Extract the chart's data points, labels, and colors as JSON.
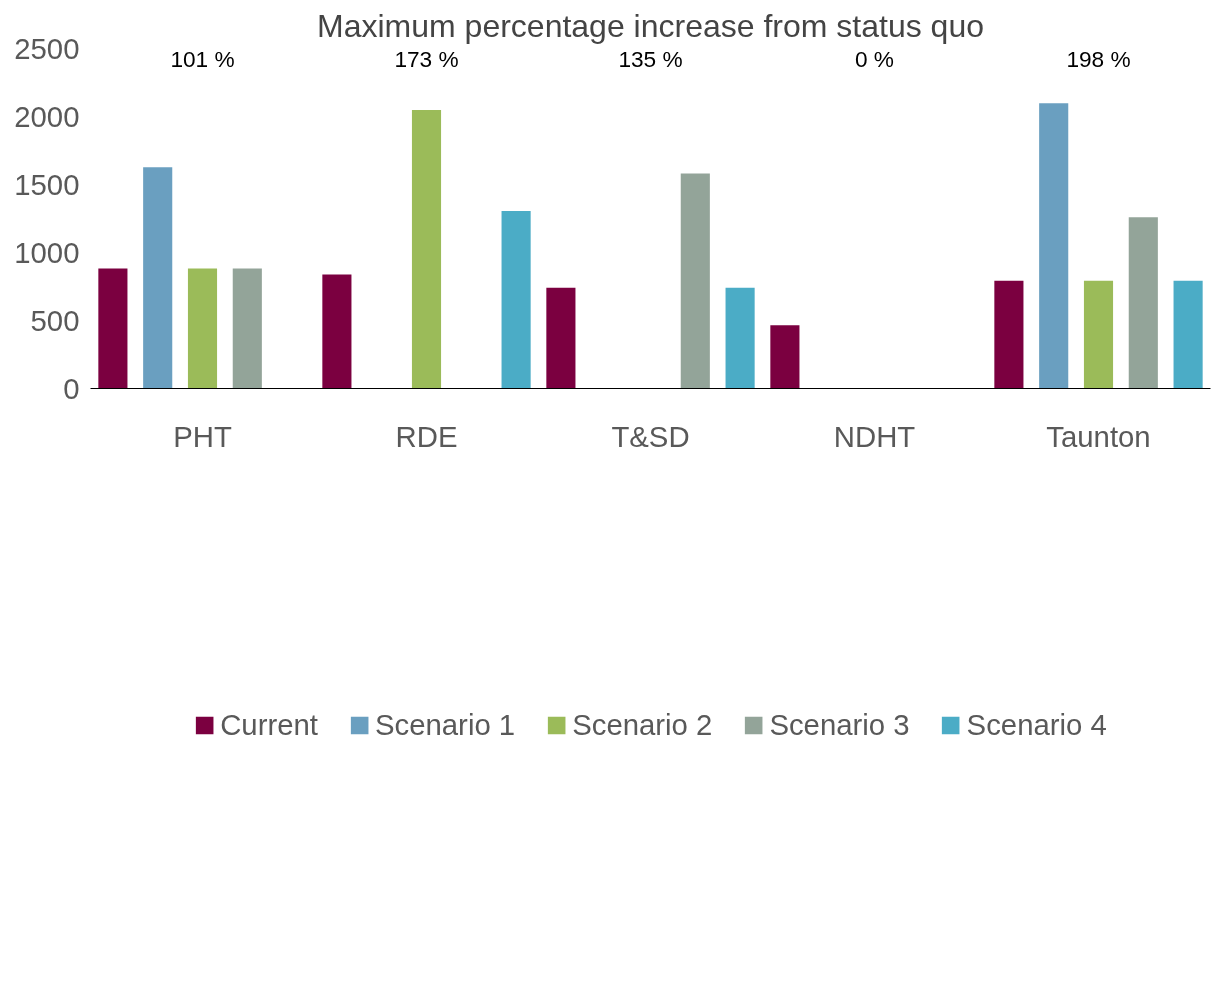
{
  "chart_data": {
    "type": "bar",
    "title": "Maximum percentage increase from status quo",
    "categories": [
      "PHT",
      "RDE",
      "T&SD",
      "NDHT",
      "Taunton"
    ],
    "series": [
      {
        "name": "Current",
        "color": "#7b0040",
        "values": [
          883,
          838,
          740,
          465,
          792
        ]
      },
      {
        "name": "Scenario 1",
        "color": "#6a9fc0",
        "values": [
          1626,
          null,
          null,
          null,
          2098
        ]
      },
      {
        "name": "Scenario 2",
        "color": "#9bbb59",
        "values": [
          883,
          2048,
          null,
          null,
          792
        ]
      },
      {
        "name": "Scenario 3",
        "color": "#93a499",
        "values": [
          883,
          null,
          1580,
          null,
          1260
        ]
      },
      {
        "name": "Scenario 4",
        "color": "#4bacc6",
        "values": [
          null,
          1306,
          740,
          null,
          792
        ]
      }
    ],
    "ylim": [
      0,
      2500
    ],
    "yticks": [
      0,
      500,
      1000,
      1500,
      2000,
      2500
    ],
    "grid": false,
    "legend": "bottom",
    "annotations": [
      "101 %",
      "173 %",
      "135 %",
      "0 %",
      "198 %"
    ]
  }
}
